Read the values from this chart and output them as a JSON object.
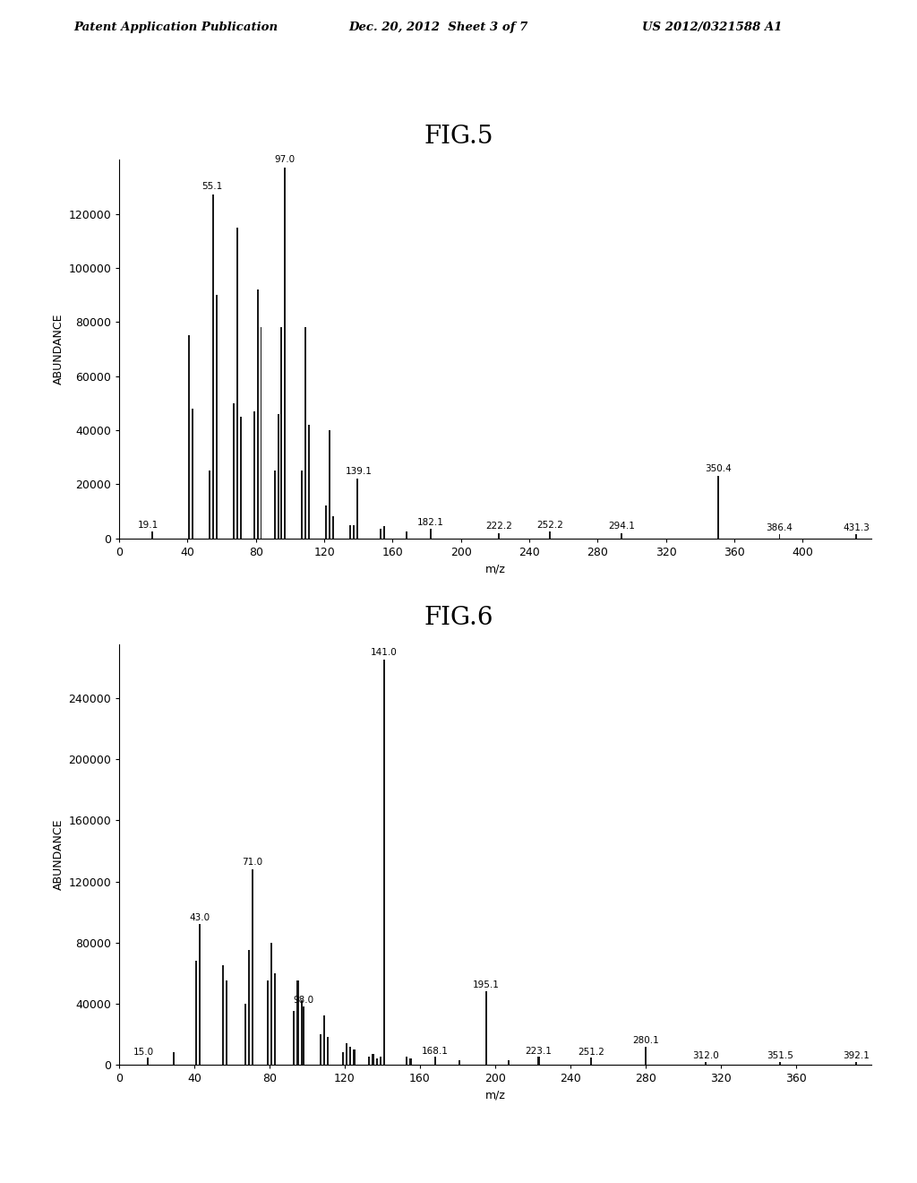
{
  "header_left": "Patent Application Publication",
  "header_mid": "Dec. 20, 2012  Sheet 3 of 7",
  "header_right": "US 2012/0321588 A1",
  "fig5": {
    "title": "FIG.5",
    "xlabel": "m/z",
    "ylabel": "ABUNDANCE",
    "xlim": [
      0,
      440
    ],
    "ylim": [
      0,
      140000
    ],
    "yticks": [
      0,
      20000,
      40000,
      60000,
      80000,
      100000,
      120000
    ],
    "xticks": [
      0,
      40,
      80,
      120,
      160,
      200,
      240,
      280,
      320,
      360,
      400
    ],
    "peaks": [
      {
        "mz": 19.1,
        "intensity": 2500,
        "label": "19.1"
      },
      {
        "mz": 41,
        "intensity": 75000,
        "label": null
      },
      {
        "mz": 43,
        "intensity": 48000,
        "label": null
      },
      {
        "mz": 53,
        "intensity": 25000,
        "label": null
      },
      {
        "mz": 55.1,
        "intensity": 127000,
        "label": "55.1"
      },
      {
        "mz": 57,
        "intensity": 90000,
        "label": null
      },
      {
        "mz": 67,
        "intensity": 50000,
        "label": null
      },
      {
        "mz": 69,
        "intensity": 115000,
        "label": null
      },
      {
        "mz": 71,
        "intensity": 45000,
        "label": null
      },
      {
        "mz": 79,
        "intensity": 47000,
        "label": null
      },
      {
        "mz": 81,
        "intensity": 92000,
        "label": null
      },
      {
        "mz": 83,
        "intensity": 78000,
        "label": null
      },
      {
        "mz": 91,
        "intensity": 25000,
        "label": null
      },
      {
        "mz": 93,
        "intensity": 46000,
        "label": null
      },
      {
        "mz": 95,
        "intensity": 78000,
        "label": null
      },
      {
        "mz": 97.0,
        "intensity": 137000,
        "label": "97.0"
      },
      {
        "mz": 107,
        "intensity": 25000,
        "label": null
      },
      {
        "mz": 109,
        "intensity": 78000,
        "label": null
      },
      {
        "mz": 111,
        "intensity": 42000,
        "label": null
      },
      {
        "mz": 121,
        "intensity": 12000,
        "label": null
      },
      {
        "mz": 123,
        "intensity": 40000,
        "label": null
      },
      {
        "mz": 125,
        "intensity": 8000,
        "label": null
      },
      {
        "mz": 135,
        "intensity": 5000,
        "label": null
      },
      {
        "mz": 137,
        "intensity": 5000,
        "label": null
      },
      {
        "mz": 139.1,
        "intensity": 22000,
        "label": "139.1"
      },
      {
        "mz": 153,
        "intensity": 3500,
        "label": null
      },
      {
        "mz": 155,
        "intensity": 4500,
        "label": null
      },
      {
        "mz": 168,
        "intensity": 2500,
        "label": null
      },
      {
        "mz": 182.1,
        "intensity": 3500,
        "label": "182.1"
      },
      {
        "mz": 222.2,
        "intensity": 2000,
        "label": "222.2"
      },
      {
        "mz": 252.2,
        "intensity": 2500,
        "label": "252.2"
      },
      {
        "mz": 294.1,
        "intensity": 2000,
        "label": "294.1"
      },
      {
        "mz": 350.4,
        "intensity": 23000,
        "label": "350.4"
      },
      {
        "mz": 386.4,
        "intensity": 1500,
        "label": "386.4"
      },
      {
        "mz": 431.3,
        "intensity": 1500,
        "label": "431.3"
      }
    ]
  },
  "fig6": {
    "title": "FIG.6",
    "xlabel": "m/z",
    "ylabel": "ABUNDANCE",
    "xlim": [
      0,
      400
    ],
    "ylim": [
      0,
      275000
    ],
    "yticks": [
      0,
      40000,
      80000,
      120000,
      160000,
      200000,
      240000
    ],
    "xticks": [
      0,
      40,
      80,
      120,
      160,
      200,
      240,
      280,
      320,
      360
    ],
    "peaks": [
      {
        "mz": 15.0,
        "intensity": 4500,
        "label": "15.0"
      },
      {
        "mz": 29,
        "intensity": 8000,
        "label": null
      },
      {
        "mz": 41,
        "intensity": 68000,
        "label": null
      },
      {
        "mz": 43.0,
        "intensity": 92000,
        "label": "43.0"
      },
      {
        "mz": 55,
        "intensity": 65000,
        "label": null
      },
      {
        "mz": 57,
        "intensity": 55000,
        "label": null
      },
      {
        "mz": 67,
        "intensity": 40000,
        "label": null
      },
      {
        "mz": 69,
        "intensity": 75000,
        "label": null
      },
      {
        "mz": 71.0,
        "intensity": 128000,
        "label": "71.0"
      },
      {
        "mz": 79,
        "intensity": 55000,
        "label": null
      },
      {
        "mz": 81,
        "intensity": 80000,
        "label": null
      },
      {
        "mz": 83,
        "intensity": 60000,
        "label": null
      },
      {
        "mz": 93,
        "intensity": 35000,
        "label": null
      },
      {
        "mz": 95,
        "intensity": 55000,
        "label": null
      },
      {
        "mz": 97,
        "intensity": 42000,
        "label": null
      },
      {
        "mz": 98.0,
        "intensity": 38000,
        "label": "98.0"
      },
      {
        "mz": 107,
        "intensity": 20000,
        "label": null
      },
      {
        "mz": 109,
        "intensity": 32000,
        "label": null
      },
      {
        "mz": 111,
        "intensity": 18000,
        "label": null
      },
      {
        "mz": 119,
        "intensity": 8000,
        "label": null
      },
      {
        "mz": 121,
        "intensity": 14000,
        "label": null
      },
      {
        "mz": 123,
        "intensity": 12000,
        "label": null
      },
      {
        "mz": 125,
        "intensity": 10000,
        "label": null
      },
      {
        "mz": 133,
        "intensity": 5000,
        "label": null
      },
      {
        "mz": 135,
        "intensity": 7000,
        "label": null
      },
      {
        "mz": 137,
        "intensity": 4000,
        "label": null
      },
      {
        "mz": 139,
        "intensity": 5000,
        "label": null
      },
      {
        "mz": 141.0,
        "intensity": 265000,
        "label": "141.0"
      },
      {
        "mz": 153,
        "intensity": 5000,
        "label": null
      },
      {
        "mz": 155,
        "intensity": 4000,
        "label": null
      },
      {
        "mz": 168.1,
        "intensity": 5000,
        "label": "168.1"
      },
      {
        "mz": 181,
        "intensity": 3000,
        "label": null
      },
      {
        "mz": 195.1,
        "intensity": 48000,
        "label": "195.1"
      },
      {
        "mz": 207,
        "intensity": 3000,
        "label": null
      },
      {
        "mz": 223.1,
        "intensity": 5000,
        "label": "223.1"
      },
      {
        "mz": 251.2,
        "intensity": 4500,
        "label": "251.2"
      },
      {
        "mz": 280.1,
        "intensity": 12000,
        "label": "280.1"
      },
      {
        "mz": 312.0,
        "intensity": 2000,
        "label": "312.0"
      },
      {
        "mz": 351.5,
        "intensity": 2000,
        "label": "351.5"
      },
      {
        "mz": 392.1,
        "intensity": 2000,
        "label": "392.1"
      }
    ]
  },
  "bar_color": "#1a1a1a",
  "bar_width": 1.0,
  "background_color": "#ffffff",
  "title_fontsize": 20,
  "axis_label_fontsize": 9,
  "tick_fontsize": 9,
  "peak_label_fontsize": 7.5,
  "header_fontsize": 9.5
}
